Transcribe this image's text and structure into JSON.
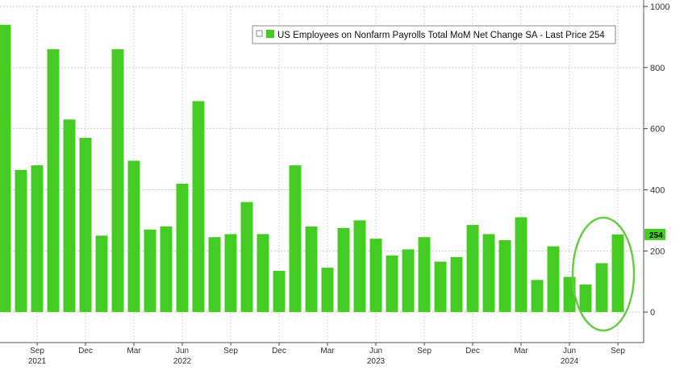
{
  "chart_data": {
    "type": "bar",
    "legend": {
      "label": "US Employees on Nonfarm Payrolls Total MoM Net Change SA - Last Price 254",
      "placement": "top-right"
    },
    "last_price_label": "254",
    "ylim": [
      -100,
      1000
    ],
    "y_ticks": [
      0,
      200,
      400,
      600,
      800,
      1000
    ],
    "grid": true,
    "y_axis_side": "right",
    "x_month_ticks": [
      "Sep",
      "Dec",
      "Mar",
      "Jun",
      "Sep",
      "Dec",
      "Mar",
      "Jun",
      "Sep",
      "Dec",
      "Mar",
      "Jun",
      "Sep"
    ],
    "x_year_labels": [
      "2021",
      "2022",
      "2023",
      "2024"
    ],
    "categories": [
      "2021-07",
      "2021-08",
      "2021-09",
      "2021-10",
      "2021-11",
      "2021-12",
      "2022-01",
      "2022-02",
      "2022-03",
      "2022-04",
      "2022-05",
      "2022-06",
      "2022-07",
      "2022-08",
      "2022-09",
      "2022-10",
      "2022-11",
      "2022-12",
      "2023-01",
      "2023-02",
      "2023-03",
      "2023-04",
      "2023-05",
      "2023-06",
      "2023-07",
      "2023-08",
      "2023-09",
      "2023-10",
      "2023-11",
      "2023-12",
      "2024-01",
      "2024-02",
      "2024-03",
      "2024-04",
      "2024-05",
      "2024-06",
      "2024-07",
      "2024-08",
      "2024-09"
    ],
    "values": [
      940,
      465,
      480,
      860,
      630,
      570,
      250,
      860,
      495,
      270,
      280,
      420,
      690,
      245,
      255,
      360,
      255,
      135,
      480,
      280,
      145,
      275,
      300,
      240,
      185,
      205,
      245,
      165,
      180,
      285,
      255,
      235,
      310,
      105,
      215,
      115,
      90,
      160,
      254
    ],
    "highlight": {
      "shape": "ellipse",
      "color": "#66cc44",
      "around_last": 3
    },
    "colors": {
      "bar": "#44cc22",
      "grid": "#cccccc",
      "axis_text": "#333333",
      "highlight": "#66cc44",
      "last_price_bg": "#44cc22"
    }
  }
}
